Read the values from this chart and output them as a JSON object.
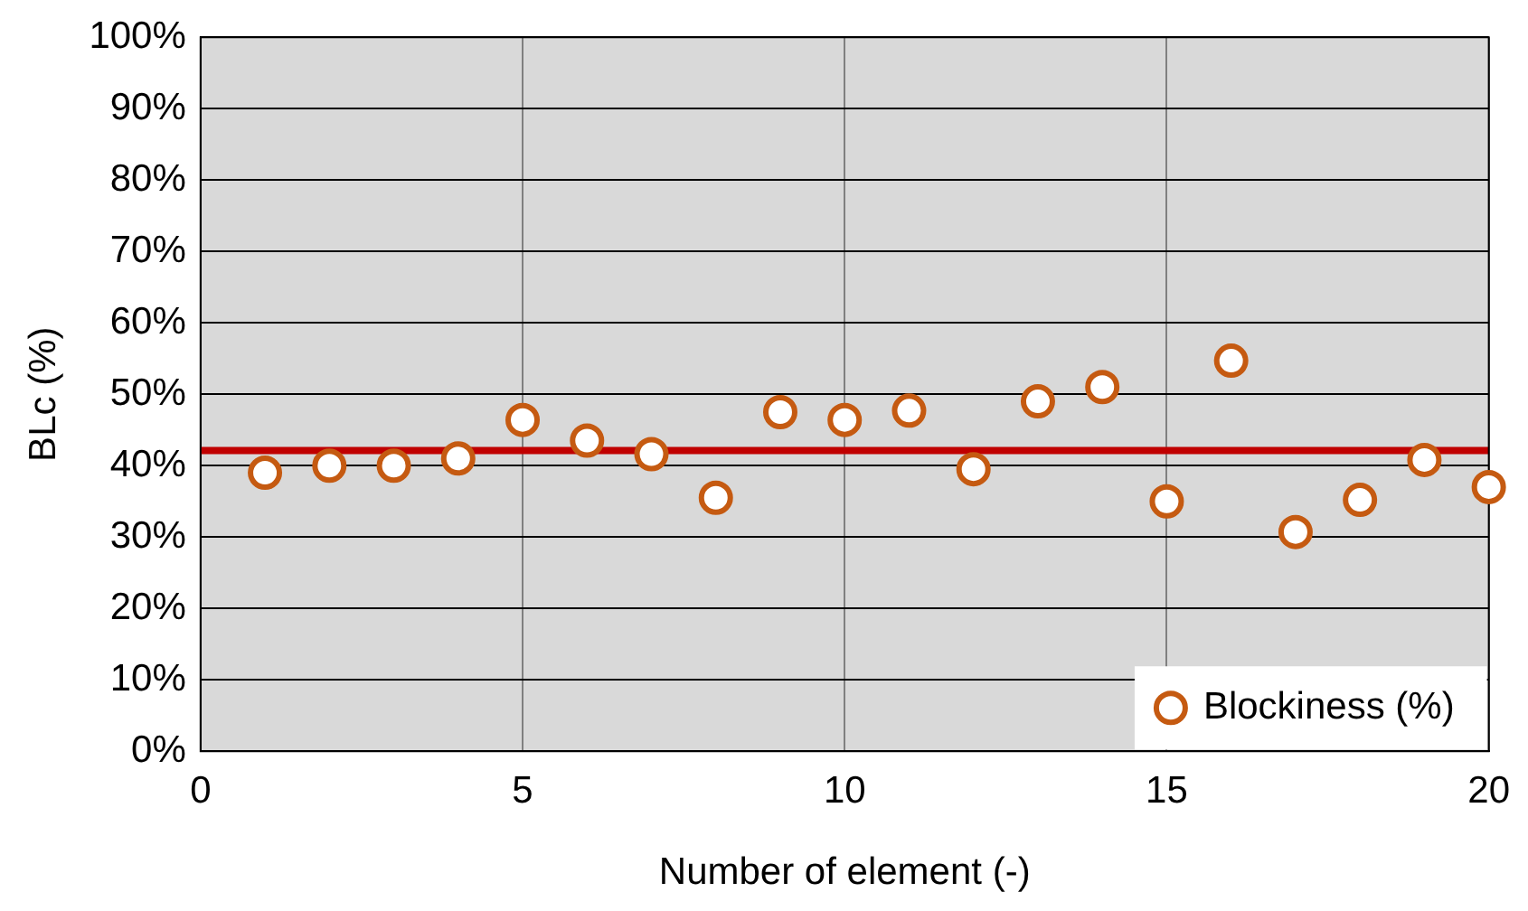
{
  "chart_data": {
    "type": "scatter",
    "xlabel": "Number of element (-)",
    "ylabel": "BLc (%)",
    "x": [
      1,
      2,
      3,
      4,
      5,
      6,
      7,
      8,
      9,
      10,
      11,
      12,
      13,
      14,
      15,
      16,
      17,
      18,
      19,
      20
    ],
    "series": [
      {
        "name": "Blockiness (%)",
        "color": "#c55a11",
        "values": [
          39,
          40,
          40,
          41,
          46.4,
          43.5,
          41.6,
          35.5,
          47.5,
          46.4,
          47.7,
          39.5,
          49,
          51,
          35,
          54.7,
          30.7,
          35.2,
          40.8,
          37
        ]
      }
    ],
    "xlim": [
      0,
      20
    ],
    "xticks": [
      0,
      5,
      10,
      15,
      20
    ],
    "ylim": [
      0,
      100
    ],
    "yticks": [
      {
        "value": 0,
        "label": "0%"
      },
      {
        "value": 10,
        "label": "10%"
      },
      {
        "value": 20,
        "label": "20%"
      },
      {
        "value": 30,
        "label": "30%"
      },
      {
        "value": 40,
        "label": "40%"
      },
      {
        "value": 50,
        "label": "50%"
      },
      {
        "value": 60,
        "label": "60%"
      },
      {
        "value": 70,
        "label": "70%"
      },
      {
        "value": 80,
        "label": "80%"
      },
      {
        "value": 90,
        "label": "90%"
      },
      {
        "value": 100,
        "label": "100%"
      }
    ],
    "ref_lines": [
      {
        "axis": "y",
        "value": 42.1,
        "color": "#c00000"
      }
    ],
    "grid": true,
    "legend": "bottom right",
    "marker": "circle"
  }
}
